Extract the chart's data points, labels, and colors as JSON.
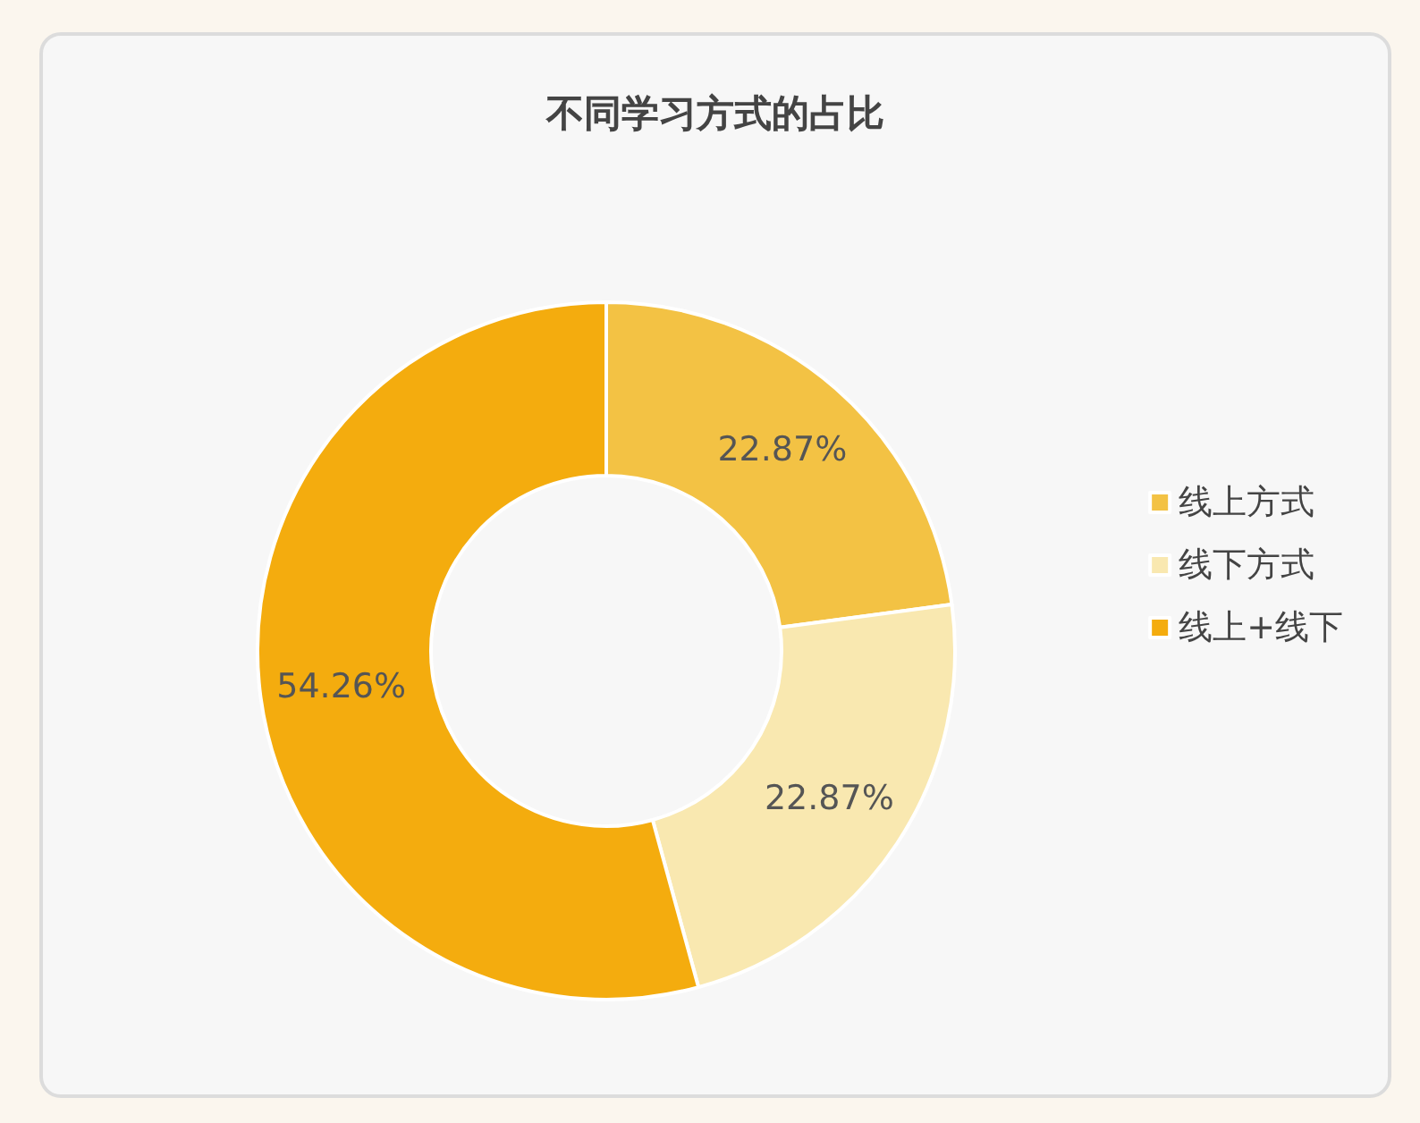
{
  "chart_data": {
    "type": "donut",
    "title": "不同学习方式的占比",
    "categories": [
      "线上方式",
      "线下方式",
      "线上+线下"
    ],
    "values": [
      22.87,
      22.87,
      54.26
    ],
    "colors": [
      "#f3c244",
      "#f9e8b0",
      "#f4ac0e"
    ],
    "value_labels": [
      "22.87%",
      "22.87%",
      "54.26%"
    ],
    "legend": "right"
  }
}
